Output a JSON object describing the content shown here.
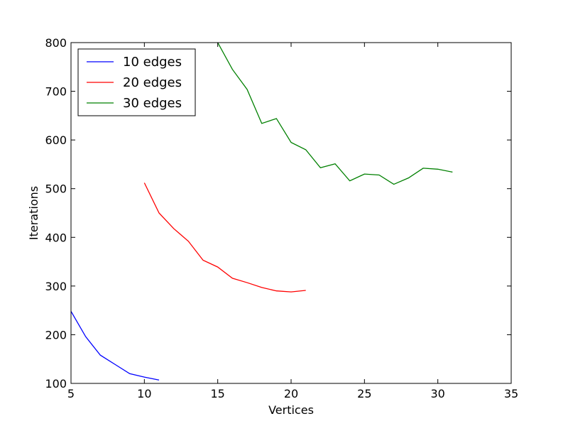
{
  "chart_data": {
    "type": "line",
    "title": "",
    "xlabel": "Vertices",
    "ylabel": "Iterations",
    "xlim": [
      5,
      35
    ],
    "ylim": [
      100,
      800
    ],
    "xticks": [
      5,
      10,
      15,
      20,
      25,
      30,
      35
    ],
    "yticks": [
      100,
      200,
      300,
      400,
      500,
      600,
      700,
      800
    ],
    "grid": false,
    "legend_position": "top-left",
    "series": [
      {
        "name": "10 edges",
        "color": "#0000ff",
        "x": [
          5,
          6,
          7,
          8,
          9,
          10,
          11
        ],
        "y": [
          248,
          196,
          158,
          139,
          120,
          113,
          107
        ]
      },
      {
        "name": "20 edges",
        "color": "#ff0000",
        "x": [
          10,
          11,
          12,
          13,
          14,
          15,
          16,
          17,
          18,
          19,
          20,
          21
        ],
        "y": [
          512,
          450,
          418,
          392,
          353,
          339,
          316,
          307,
          297,
          290,
          288,
          291
        ]
      },
      {
        "name": "30 edges",
        "color": "#008000",
        "x": [
          15,
          16,
          17,
          18,
          19,
          20,
          21,
          22,
          23,
          24,
          25,
          26,
          27,
          28,
          29,
          30,
          31
        ],
        "y": [
          800,
          745,
          704,
          634,
          644,
          595,
          580,
          543,
          551,
          516,
          530,
          528,
          509,
          522,
          542,
          540,
          534
        ]
      }
    ]
  }
}
